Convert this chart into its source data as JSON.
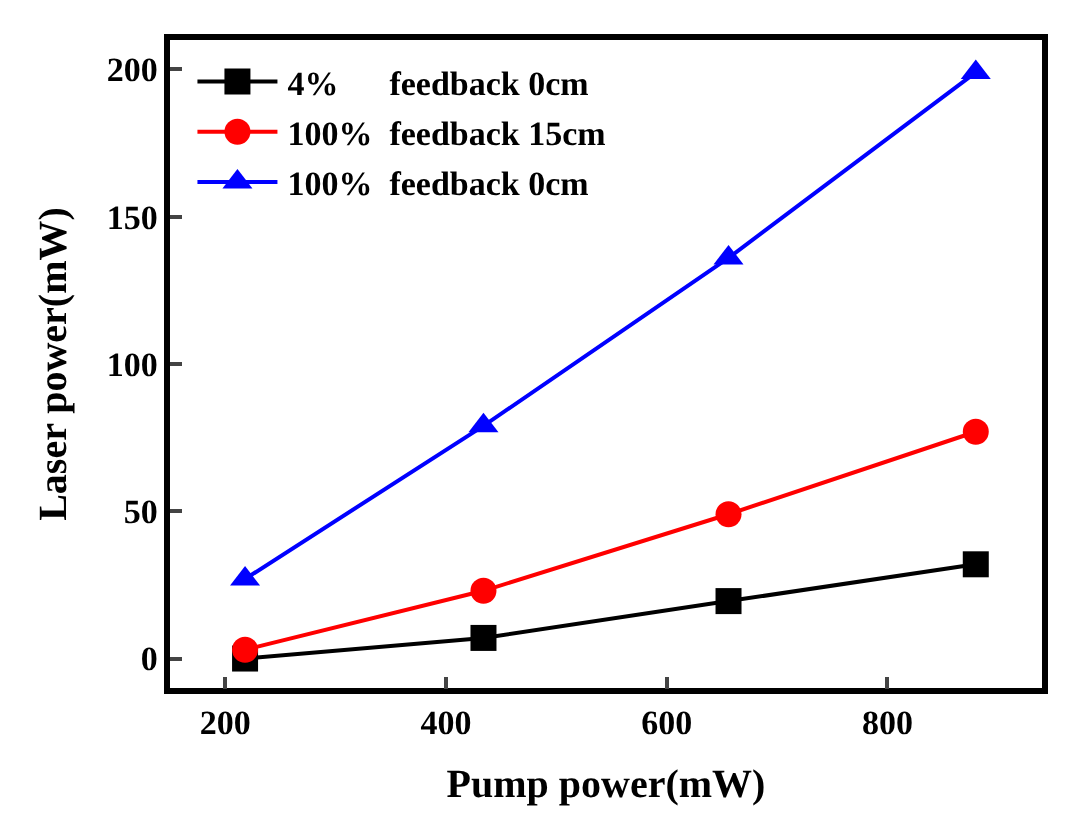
{
  "chart_data": {
    "type": "line",
    "xlabel": "Pump power(mW)",
    "ylabel": "Laser power(mW)",
    "x": [
      218,
      434,
      656,
      880
    ],
    "series": [
      {
        "name": "4%      feedback 0cm",
        "color": "#000000",
        "marker": "square",
        "values": [
          0,
          7,
          19.5,
          32
        ]
      },
      {
        "name": "100%  feedback 15cm",
        "color": "#ff0000",
        "marker": "circle",
        "values": [
          3,
          23,
          49,
          77
        ]
      },
      {
        "name": "100%  feedback 0cm",
        "color": "#0000ff",
        "marker": "triangle",
        "values": [
          27,
          79,
          136,
          199
        ]
      }
    ],
    "xlim": [
      150,
      940
    ],
    "xticks": [
      200,
      400,
      600,
      800
    ],
    "ylim": [
      -10,
      210
    ],
    "yticks": [
      0,
      50,
      100,
      150,
      200
    ],
    "legend": "top left"
  }
}
